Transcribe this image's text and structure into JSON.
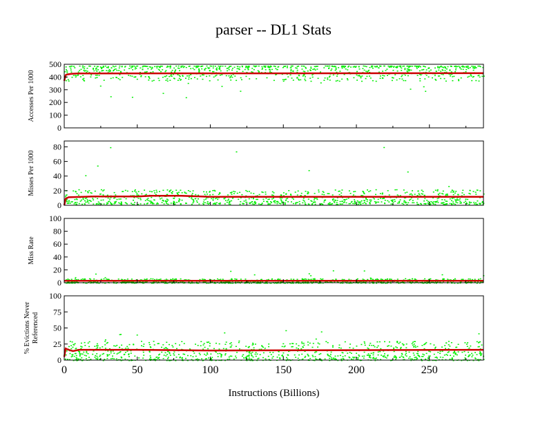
{
  "chart_data": {
    "type": "scatter",
    "title": "parser -- DL1  Stats",
    "xlabel": "Instructions (Billions)",
    "xlim": [
      0,
      287
    ],
    "xticks": [
      0,
      50,
      100,
      150,
      200,
      250
    ],
    "colors": {
      "points": "#00ee00",
      "line": "#cc0000",
      "axis": "#000000"
    },
    "panels": [
      {
        "ylabel": [
          "Accesses Per 1000"
        ],
        "ylim": [
          0,
          500
        ],
        "yticks": [
          0,
          100,
          200,
          300,
          400,
          500
        ],
        "scatter_band": {
          "low": 370,
          "high": 490,
          "outlier_low": 230
        },
        "average_line": {
          "x": [
            0,
            1,
            2,
            5,
            10,
            287
          ],
          "y": [
            370,
            415,
            420,
            425,
            428,
            430
          ]
        }
      },
      {
        "ylabel": [
          "Misses Per 1000"
        ],
        "ylim": [
          0,
          88
        ],
        "yticks": [
          0,
          20,
          40,
          60,
          80
        ],
        "scatter_band": {
          "low": 2,
          "high": 22,
          "outlier_high": 84
        },
        "average_line": {
          "x": [
            0,
            1,
            3,
            20,
            50,
            60,
            80,
            100,
            287
          ],
          "y": [
            0,
            9,
            11,
            12,
            12,
            13,
            13,
            11.5,
            11.5
          ]
        }
      },
      {
        "ylabel": [
          "Miss Rate"
        ],
        "ylim": [
          0,
          100
        ],
        "yticks": [
          0,
          20,
          40,
          60,
          80,
          100
        ],
        "scatter_band": {
          "low": 0,
          "high": 7,
          "outlier_high": 22
        },
        "average_line": {
          "x": [
            0,
            287
          ],
          "y": [
            3,
            3
          ]
        }
      },
      {
        "ylabel": [
          "% Evictions Never",
          "Referenced"
        ],
        "ylim": [
          0,
          100
        ],
        "yticks": [
          0,
          25,
          50,
          75,
          100
        ],
        "scatter_band": {
          "low": 0,
          "high": 30,
          "outlier_high": 47
        },
        "average_line": {
          "x": [
            0,
            1,
            3,
            6,
            10,
            40,
            50,
            100,
            287
          ],
          "y": [
            5,
            18,
            16,
            14,
            16,
            16,
            16,
            15,
            16
          ]
        }
      }
    ]
  }
}
